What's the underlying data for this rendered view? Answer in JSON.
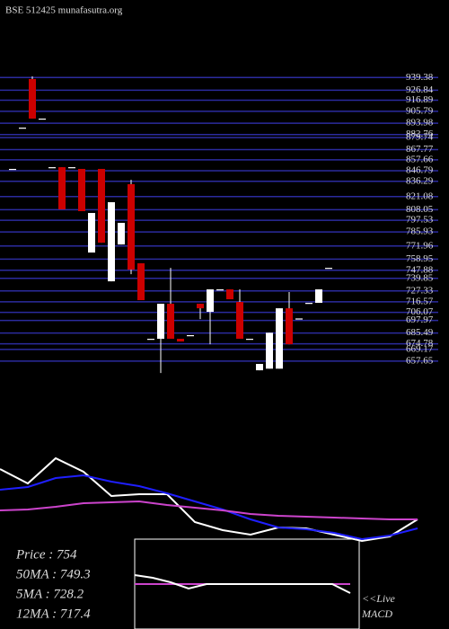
{
  "title": "BSE 512425 munafasutra.org",
  "chart_data": [
    {
      "type": "candlestick",
      "open": [
        848.6,
        889.6,
        937.9,
        898.6,
        850.3,
        850.3,
        850.3,
        848.6,
        765.5,
        848.6,
        736.9,
        773.5,
        833.4,
        754.8,
        679.8,
        679.8,
        714.6,
        679.8,
        683.4,
        714.6,
        706.6,
        728.9,
        728.9,
        716.4,
        679.8,
        648.5,
        650.1,
        650.1,
        710.1,
        700,
        715.5,
        715.5,
        750.3
      ],
      "high": [
        848.6,
        889.6,
        940.5,
        898.6,
        850.3,
        850.3,
        850.3,
        848.6,
        804.8,
        848.6,
        815.5,
        795,
        837.8,
        754.8,
        679.8,
        714.6,
        750.3,
        679.8,
        683.4,
        714.6,
        728.9,
        728.9,
        728.9,
        728.9,
        679.8,
        654.8,
        685.8,
        710.1,
        726.2,
        700,
        715.5,
        728.9,
        750.3
      ],
      "low": [
        848.6,
        889.6,
        898.6,
        898.6,
        850.3,
        808.4,
        850.3,
        806.6,
        765.5,
        775.3,
        736.9,
        773.5,
        744,
        718.2,
        679.8,
        645.8,
        679.8,
        677.1,
        683.4,
        699.4,
        674.4,
        728.9,
        719.1,
        679.8,
        679.8,
        648.5,
        650.1,
        650.1,
        674.4,
        700,
        715.5,
        715.5,
        750.3
      ],
      "close": [
        848.6,
        889.6,
        898.6,
        898.6,
        850.3,
        808.4,
        850.3,
        806.6,
        804.8,
        775.3,
        815.5,
        795,
        748.5,
        718.2,
        679.8,
        714.6,
        679.8,
        677.1,
        683.4,
        710.1,
        728.9,
        728.9,
        719.1,
        679.8,
        679.8,
        654.8,
        685.8,
        710.1,
        674.4,
        700,
        715.5,
        728.9,
        750.3
      ],
      "up_color": "#ffffff",
      "down_color": "#cc0000",
      "ylim": [
        645,
        945
      ],
      "yticks": [
        939.38,
        926.84,
        916.89,
        905.79,
        893.98,
        882.76,
        879.74,
        867.77,
        857.66,
        846.79,
        836.29,
        821.08,
        808.05,
        797.53,
        785.93,
        771.96,
        758.95,
        747.88,
        739.85,
        727.33,
        716.57,
        706.07,
        697.97,
        685.49,
        674.78,
        669.17,
        657.65
      ],
      "grid": true,
      "grid_color": "#2b2b9e"
    },
    {
      "type": "line",
      "x": [
        0,
        31,
        62,
        93,
        124,
        155,
        186,
        217,
        248,
        279,
        310,
        341,
        372,
        403,
        434,
        465
      ],
      "xlim": [
        0,
        500
      ],
      "ylim": [
        690,
        800
      ],
      "series": [
        {
          "color": "#ffffff",
          "values": [
            778,
            762,
            790,
            775,
            748,
            750,
            750,
            719,
            710,
            705,
            713,
            712,
            705,
            698,
            703,
            722
          ]
        },
        {
          "color": "#1f1fff",
          "values": [
            755,
            758,
            768,
            771,
            764,
            759,
            751,
            742,
            733,
            722,
            713,
            711,
            707,
            700,
            704,
            712
          ]
        },
        {
          "color": "#cc44cc",
          "values": [
            732,
            733,
            736,
            740,
            741,
            742,
            738,
            735,
            732,
            728,
            726,
            725,
            724,
            723,
            722,
            722
          ]
        }
      ],
      "readout": [
        "Price   : 754",
        "50MA : 749.3",
        "5MA : 728.2",
        "12MA : 717.4"
      ]
    },
    {
      "type": "macd",
      "x": [
        150,
        170,
        190,
        210,
        230,
        250,
        270,
        290,
        310,
        330,
        350,
        370,
        390
      ],
      "xlim": [
        150,
        400
      ],
      "ylim": [
        -50,
        50
      ],
      "series": [
        {
          "color": "#ffffff",
          "values": [
            10,
            7,
            2,
            -5,
            0,
            0,
            0,
            0,
            0,
            0,
            0,
            0,
            -10
          ]
        },
        {
          "color": "#cc44cc",
          "values": [
            0,
            0,
            0,
            0,
            0,
            0,
            0,
            0,
            0,
            0,
            0,
            0,
            0
          ]
        }
      ],
      "labels": [
        "<<Live",
        "MACD"
      ]
    }
  ]
}
